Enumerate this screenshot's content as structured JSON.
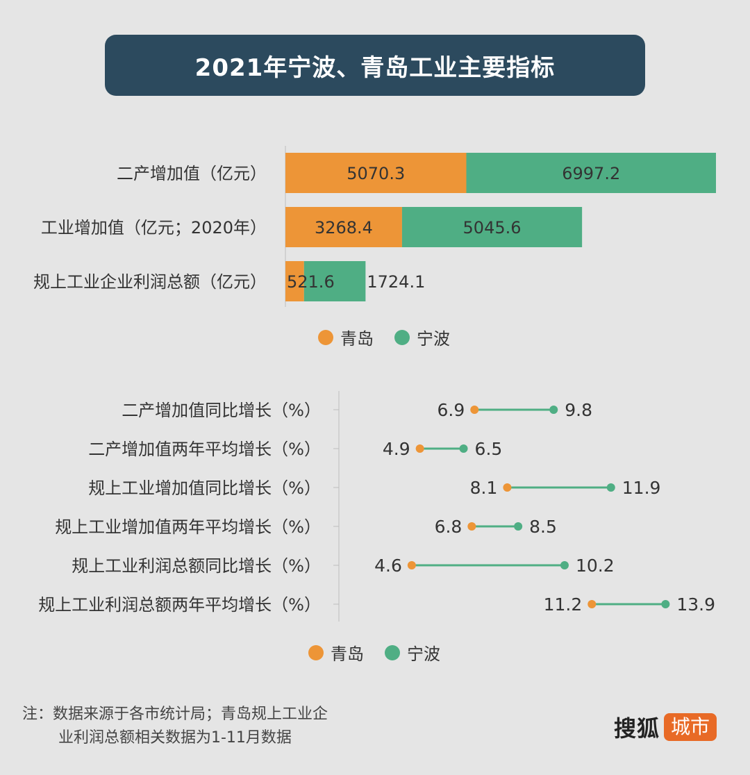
{
  "title": "2021年宁波、青岛工业主要指标",
  "colors": {
    "qingdao": "#ed9537",
    "ningbo": "#4fae84",
    "banner": "#2c4a5e"
  },
  "chart_data": [
    {
      "type": "bar",
      "orientation": "horizontal",
      "stacked": true,
      "categories": [
        "二产增加值（亿元）",
        "工业增加值（亿元；2020年）",
        "规上工业企业利润总额（亿元）"
      ],
      "series": [
        {
          "name": "青岛",
          "values": [
            5070.3,
            3268.4,
            521.6
          ],
          "labels": [
            "5070.3",
            "3268.4",
            "521.6"
          ]
        },
        {
          "name": "宁波",
          "values": [
            6997.2,
            5045.6,
            1724.1
          ],
          "labels": [
            "6997.2",
            "5045.6",
            "1724.1"
          ]
        }
      ],
      "legend": [
        "青岛",
        "宁波"
      ],
      "legend_position": "bottom"
    },
    {
      "type": "dumbbell",
      "categories": [
        "二产增加值同比增长（%）",
        "二产增加值两年平均增长（%）",
        "规上工业增加值同比增长（%）",
        "规上工业增加值两年平均增长（%）",
        "规上工业利润总额同比增长（%）",
        "规上工业利润总额两年平均增长（%）"
      ],
      "series": [
        {
          "name": "青岛",
          "values": [
            6.9,
            4.9,
            8.1,
            6.8,
            4.6,
            11.2
          ],
          "labels": [
            "6.9",
            "4.9",
            "8.1",
            "6.8",
            "4.6",
            "11.2"
          ]
        },
        {
          "name": "宁波",
          "values": [
            9.8,
            6.5,
            11.9,
            8.5,
            10.2,
            13.9
          ],
          "labels": [
            "9.8",
            "6.5",
            "11.9",
            "8.5",
            "10.2",
            "13.9"
          ]
        }
      ],
      "legend": [
        "青岛",
        "宁波"
      ],
      "legend_position": "bottom"
    }
  ],
  "footnote": {
    "line1": "注：数据来源于各市统计局；青岛规上工业企",
    "line2": "业利润总额相关数据为1-11月数据"
  },
  "logo": {
    "brand": "搜狐",
    "tag": "城市"
  }
}
